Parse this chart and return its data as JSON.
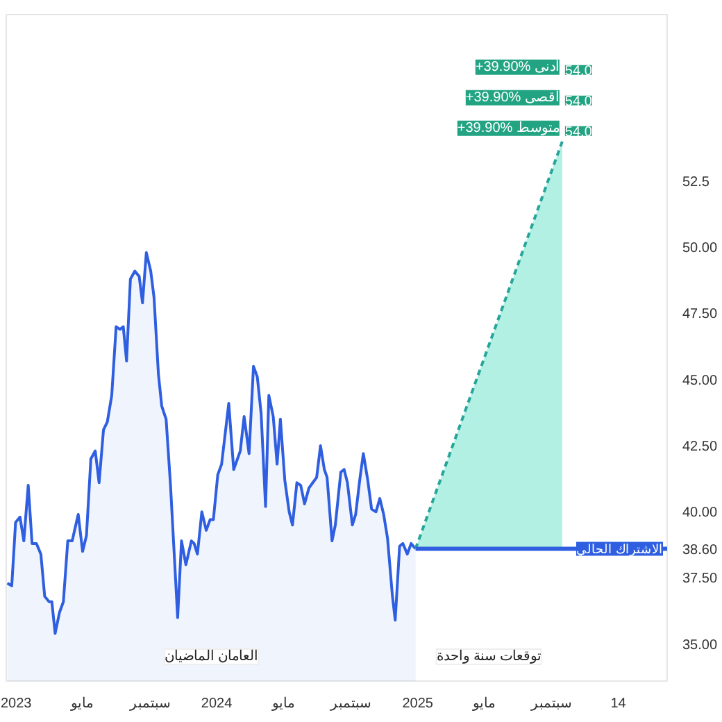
{
  "chart_data": {
    "type": "area",
    "xlim": [
      "2022-12-14",
      "2026-03-31"
    ],
    "ylim": [
      33.6,
      58.8
    ],
    "xticks": [
      {
        "value": "2023-01-01",
        "label": "2023"
      },
      {
        "value": "2023-05-01",
        "label": "مايو"
      },
      {
        "value": "2023-09-01",
        "label": "سبتمبر"
      },
      {
        "value": "2024-01-01",
        "label": "2024"
      },
      {
        "value": "2024-05-01",
        "label": "مايو"
      },
      {
        "value": "2024-09-01",
        "label": "سبتمبر"
      },
      {
        "value": "2025-01-01",
        "label": "2025"
      },
      {
        "value": "2025-05-01",
        "label": "مايو"
      },
      {
        "value": "2025-09-01",
        "label": "سبتمبر"
      },
      {
        "value": "2026-01-01",
        "label": "14"
      }
    ],
    "yticks": [
      {
        "value": 35,
        "label": "35.00"
      },
      {
        "value": 37.5,
        "label": "37.50"
      },
      {
        "value": 38.6,
        "label": "38.60"
      },
      {
        "value": 40,
        "label": "40.00"
      },
      {
        "value": 42.5,
        "label": "42.50"
      },
      {
        "value": 45,
        "label": "45.00"
      },
      {
        "value": 47.5,
        "label": "47.50"
      },
      {
        "value": 50,
        "label": "50.00"
      },
      {
        "value": 52.5,
        "label": "52.5"
      }
    ],
    "grid": false,
    "series": [
      {
        "color": "#2f5fe0",
        "x": [
          "2022-12-16",
          "2022-12-24",
          "2022-12-31",
          "2023-01-08",
          "2023-01-15",
          "2023-01-23",
          "2023-01-30",
          "2023-02-07",
          "2023-02-15",
          "2023-02-22",
          "2023-03-02",
          "2023-03-07",
          "2023-03-13",
          "2023-03-21",
          "2023-03-28",
          "2023-04-05",
          "2023-04-13",
          "2023-04-24",
          "2023-05-02",
          "2023-05-09",
          "2023-05-17",
          "2023-05-25",
          "2023-06-01",
          "2023-06-09",
          "2023-06-16",
          "2023-06-24",
          "2023-07-02",
          "2023-07-09",
          "2023-07-15",
          "2023-07-21",
          "2023-07-28",
          "2023-08-05",
          "2023-08-13",
          "2023-08-19",
          "2023-08-26",
          "2023-09-03",
          "2023-09-09",
          "2023-09-17",
          "2023-09-23",
          "2023-10-01",
          "2023-10-09",
          "2023-10-22",
          "2023-10-29",
          "2023-11-06",
          "2023-11-16",
          "2023-11-21",
          "2023-11-27",
          "2023-12-05",
          "2023-12-13",
          "2023-12-20",
          "2023-12-26",
          "2024-01-03",
          "2024-01-10",
          "2024-01-23",
          "2024-02-01",
          "2024-02-13",
          "2024-02-20",
          "2024-02-29",
          "2024-03-08",
          "2024-03-15",
          "2024-03-22",
          "2024-03-30",
          "2024-04-05",
          "2024-04-13",
          "2024-04-20",
          "2024-04-26",
          "2024-05-04",
          "2024-05-12",
          "2024-05-18",
          "2024-05-26",
          "2024-06-02",
          "2024-06-09",
          "2024-06-17",
          "2024-06-24",
          "2024-07-01",
          "2024-07-08",
          "2024-07-15",
          "2024-07-20",
          "2024-07-29",
          "2024-08-04",
          "2024-08-14",
          "2024-08-20",
          "2024-08-26",
          "2024-09-04",
          "2024-09-10",
          "2024-09-18",
          "2024-09-24",
          "2024-10-02",
          "2024-10-09",
          "2024-10-17",
          "2024-10-24",
          "2024-10-31",
          "2024-11-07",
          "2024-11-16",
          "2024-11-21",
          "2024-11-29",
          "2024-12-05",
          "2024-12-13",
          "2024-12-20",
          "2024-12-28"
        ],
        "values": [
          37.3,
          37.2,
          39.6,
          39.8,
          38.9,
          41.0,
          38.8,
          38.8,
          38.4,
          36.8,
          36.6,
          36.6,
          35.4,
          36.2,
          36.6,
          38.9,
          38.9,
          39.9,
          38.5,
          39.1,
          42.0,
          42.3,
          41.1,
          43.1,
          43.4,
          44.4,
          47.0,
          46.9,
          47.0,
          45.7,
          48.8,
          49.1,
          48.9,
          47.9,
          49.8,
          49.1,
          48.1,
          45.2,
          44.0,
          43.5,
          41.0,
          36.0,
          38.9,
          38.0,
          38.9,
          38.8,
          38.4,
          40.0,
          39.3,
          39.7,
          39.7,
          41.4,
          41.8,
          44.1,
          41.6,
          42.3,
          43.6,
          42.2,
          45.5,
          45.1,
          43.7,
          40.2,
          44.4,
          43.6,
          41.8,
          43.5,
          41.2,
          40.0,
          39.5,
          41.1,
          41.0,
          40.3,
          40.9,
          41.1,
          41.3,
          42.5,
          41.6,
          41.3,
          38.9,
          39.5,
          41.5,
          41.6,
          41.1,
          39.5,
          39.9,
          41.3,
          42.2,
          41.2,
          40.1,
          40.0,
          40.5,
          39.9,
          39.0,
          36.8,
          35.9,
          38.7,
          38.8,
          38.4,
          38.8,
          38.6
        ]
      },
      {
        "type": "line",
        "line_style": "dashed",
        "color": "#26a69a",
        "x": [
          "2024-12-28",
          "2025-09-21"
        ],
        "values": [
          38.6,
          54.0
        ],
        "lower": [
          38.6,
          38.6
        ],
        "upper": [
          38.6,
          54.0
        ]
      }
    ],
    "ref_lines": [
      {
        "axis": "y",
        "value": 38.6,
        "label": "الاشتراك الحالي",
        "color": "#2f5fe0"
      }
    ],
    "annotations": [
      "+39.90% أدنى",
      "54.0",
      "+39.90% أقصى",
      "54.0",
      "+39.90% متوسط",
      "54.0",
      "العامان الماضيان",
      "توقعات سنة واحدة"
    ]
  }
}
